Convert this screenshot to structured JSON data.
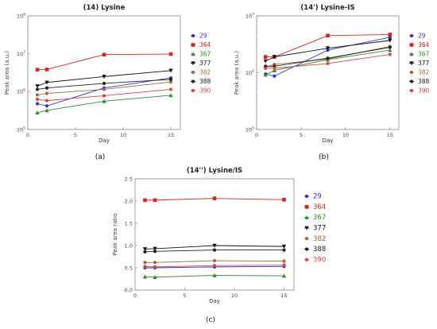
{
  "chart_data": [
    {
      "type": "line",
      "title": "(14) Lysine",
      "caption": "(a)",
      "xlabel": "Day",
      "ylabel": "Peak area (a.u.)",
      "xlim": [
        0,
        16
      ],
      "xticks": [
        "0",
        "5",
        "10",
        "15"
      ],
      "yscale": "log",
      "ylim": [
        100000,
        100000000
      ],
      "yticks": [
        {
          "base": "10",
          "exp": "5"
        },
        {
          "base": "10",
          "exp": "6"
        },
        {
          "base": "10",
          "exp": "7"
        },
        {
          "base": "10",
          "exp": "8"
        }
      ],
      "grid": false,
      "legend_position": "right",
      "x": [
        1,
        2,
        8,
        15
      ],
      "series": [
        {
          "name": "29",
          "color": "#3333cc",
          "marker": "circle",
          "values": [
            480000,
            420000,
            1250000,
            2300000
          ]
        },
        {
          "name": "364",
          "color": "#dd2222",
          "marker": "square",
          "values": [
            3800000,
            3850000,
            9500000,
            9800000
          ]
        },
        {
          "name": "367",
          "color": "#338833",
          "marker": "triangle",
          "values": [
            280000,
            320000,
            560000,
            800000
          ]
        },
        {
          "name": "377",
          "color": "#111111",
          "marker": "triangle-down",
          "values": [
            1400000,
            1750000,
            2500000,
            3600000
          ]
        },
        {
          "name": "382",
          "color": "#a06a38",
          "marker": "circle",
          "values": [
            820000,
            900000,
            1150000,
            1800000
          ]
        },
        {
          "name": "388",
          "color": "#222222",
          "marker": "circle",
          "values": [
            1150000,
            1250000,
            1650000,
            2100000
          ]
        },
        {
          "name": "390",
          "color": "#dd4444",
          "marker": "circle",
          "values": [
            630000,
            580000,
            780000,
            1150000
          ]
        }
      ]
    },
    {
      "type": "line",
      "title": "(14') Lysine-IS",
      "caption": "(b)",
      "xlabel": "Day",
      "ylabel": "Peak area (a.u.)",
      "xlim": [
        0,
        16
      ],
      "xticks": [
        "0",
        "5",
        "10",
        "15"
      ],
      "yscale": "log",
      "ylim": [
        100000,
        10000000
      ],
      "yticks": [
        {
          "base": "10",
          "exp": "5"
        },
        {
          "base": "10",
          "exp": "6"
        },
        {
          "base": "10",
          "exp": "7"
        }
      ],
      "grid": false,
      "legend_position": "right",
      "x": [
        1,
        2,
        8,
        15
      ],
      "series": [
        {
          "name": "29",
          "color": "#3333cc",
          "marker": "circle",
          "values": [
            950000,
            870000,
            2500000,
            4200000
          ]
        },
        {
          "name": "364",
          "color": "#dd2222",
          "marker": "square",
          "values": [
            1900000,
            1900000,
            4500000,
            4700000
          ]
        },
        {
          "name": "367",
          "color": "#338833",
          "marker": "triangle",
          "values": [
            920000,
            1100000,
            1700000,
            2500000
          ]
        },
        {
          "name": "377",
          "color": "#111111",
          "marker": "triangle-down",
          "values": [
            1600000,
            1900000,
            2700000,
            3700000
          ]
        },
        {
          "name": "382",
          "color": "#a06a38",
          "marker": "circle",
          "values": [
            1250000,
            1400000,
            1750000,
            2900000
          ]
        },
        {
          "name": "388",
          "color": "#222222",
          "marker": "circle",
          "values": [
            1300000,
            1300000,
            1800000,
            2800000
          ]
        },
        {
          "name": "390",
          "color": "#dd4444",
          "marker": "circle",
          "values": [
            1200000,
            1200000,
            1450000,
            2100000
          ]
        }
      ]
    },
    {
      "type": "line",
      "title": "(14'') Lysine/IS",
      "caption": "(c)",
      "xlabel": "Day",
      "ylabel": "Peak area ratio",
      "xlim": [
        0,
        16
      ],
      "xticks": [
        "0",
        "5",
        "10",
        "15"
      ],
      "yscale": "linear",
      "ylim": [
        0,
        2.5
      ],
      "yticks": [
        "0.0",
        "0.5",
        "1.0",
        "1.5",
        "2.0",
        "2.5"
      ],
      "grid": false,
      "legend_position": "right",
      "x": [
        1,
        2,
        8,
        15
      ],
      "series": [
        {
          "name": "29",
          "color": "#3333cc",
          "marker": "circle",
          "values": [
            0.5,
            0.5,
            0.52,
            0.53
          ]
        },
        {
          "name": "364",
          "color": "#dd2222",
          "marker": "square",
          "values": [
            2.02,
            2.02,
            2.06,
            2.03
          ]
        },
        {
          "name": "367",
          "color": "#338833",
          "marker": "triangle",
          "values": [
            0.3,
            0.29,
            0.33,
            0.32
          ]
        },
        {
          "name": "377",
          "color": "#111111",
          "marker": "triangle-down",
          "values": [
            0.92,
            0.93,
            1.0,
            0.98
          ]
        },
        {
          "name": "382",
          "color": "#a06a38",
          "marker": "circle",
          "values": [
            0.62,
            0.62,
            0.66,
            0.65
          ]
        },
        {
          "name": "388",
          "color": "#222222",
          "marker": "circle",
          "values": [
            0.86,
            0.87,
            0.9,
            0.9
          ]
        },
        {
          "name": "390",
          "color": "#dd4444",
          "marker": "circle",
          "values": [
            0.53,
            0.52,
            0.55,
            0.56
          ]
        }
      ]
    }
  ]
}
